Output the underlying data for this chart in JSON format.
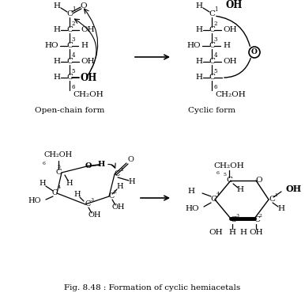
{
  "title": "Fig. 8.48 : Formation of cyclic hemiacetals",
  "bg_color": "#ffffff",
  "figsize": [
    3.86,
    3.7
  ],
  "dpi": 100,
  "top_left_label": "Open-chain form",
  "top_right_label": "Cyclic form"
}
